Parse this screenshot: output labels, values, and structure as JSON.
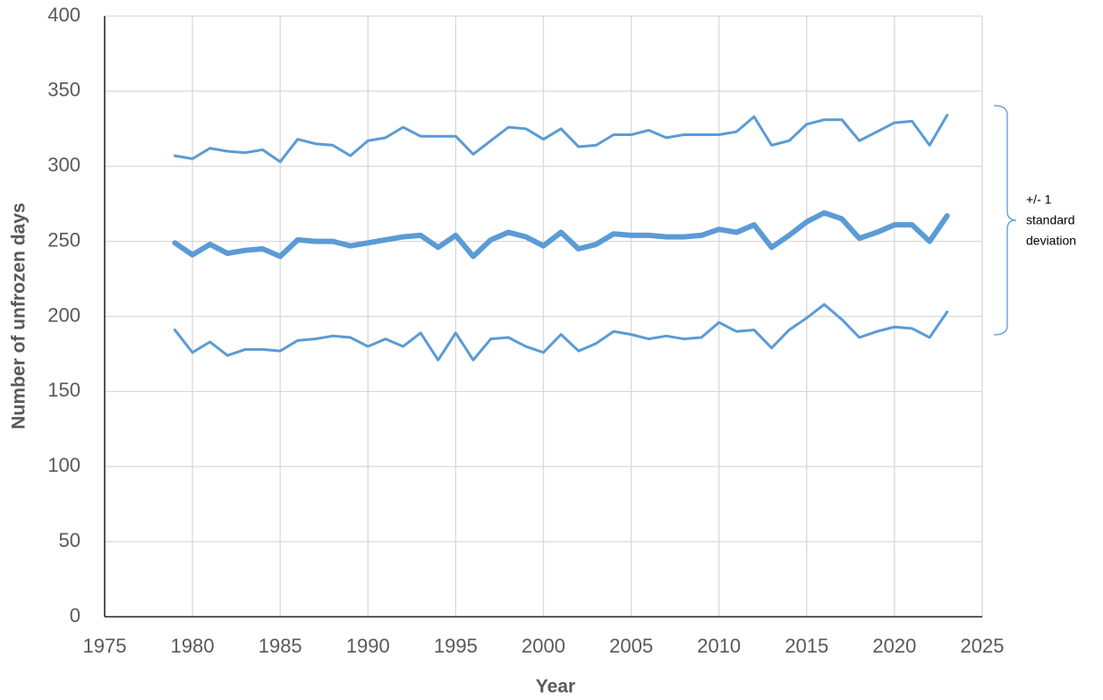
{
  "chart_data": {
    "type": "line",
    "x_label": "Year",
    "y_label": "Number of unfrozen days",
    "annotation": [
      "+/- 1",
      "standard",
      "deviation"
    ],
    "x": [
      1979,
      1980,
      1981,
      1982,
      1983,
      1984,
      1985,
      1986,
      1987,
      1988,
      1989,
      1990,
      1991,
      1992,
      1993,
      1994,
      1995,
      1996,
      1997,
      1998,
      1999,
      2000,
      2001,
      2002,
      2003,
      2004,
      2005,
      2006,
      2007,
      2008,
      2009,
      2010,
      2011,
      2012,
      2013,
      2014,
      2015,
      2016,
      2017,
      2018,
      2019,
      2020,
      2021,
      2022,
      2023
    ],
    "series": [
      {
        "color": "#5b9bd5",
        "values": [
          307,
          305,
          312,
          310,
          309,
          311,
          303,
          318,
          315,
          314,
          307,
          317,
          319,
          326,
          320,
          320,
          320,
          308,
          317,
          326,
          325,
          318,
          325,
          313,
          314,
          321,
          321,
          324,
          319,
          321,
          321,
          321,
          323,
          333,
          314,
          317,
          328,
          331,
          331,
          317,
          323,
          329,
          330,
          314,
          334
        ]
      },
      {
        "color": "#5b9bd5",
        "values": [
          249,
          241,
          248,
          242,
          244,
          245,
          240,
          251,
          250,
          250,
          247,
          249,
          251,
          253,
          254,
          246,
          254,
          240,
          251,
          256,
          253,
          247,
          256,
          245,
          248,
          255,
          254,
          254,
          253,
          253,
          254,
          258,
          256,
          261,
          246,
          254,
          263,
          269,
          265,
          252,
          256,
          261,
          261,
          250,
          267
        ]
      },
      {
        "color": "#5b9bd5",
        "values": [
          191,
          176,
          183,
          174,
          178,
          178,
          177,
          184,
          185,
          187,
          186,
          180,
          185,
          180,
          189,
          171,
          189,
          171,
          185,
          186,
          180,
          176,
          188,
          177,
          182,
          190,
          188,
          185,
          187,
          185,
          186,
          196,
          190,
          191,
          179,
          191,
          199,
          208,
          198,
          186,
          190,
          193,
          192,
          186,
          203
        ]
      }
    ],
    "xlim": [
      1975,
      2025
    ],
    "xticks": [
      1975,
      1980,
      1985,
      1990,
      1995,
      2000,
      2005,
      2010,
      2015,
      2020,
      2025
    ],
    "ylim": [
      0,
      400
    ],
    "yticks": [
      0,
      50,
      100,
      150,
      200,
      250,
      300,
      350,
      400
    ],
    "grid": true
  }
}
